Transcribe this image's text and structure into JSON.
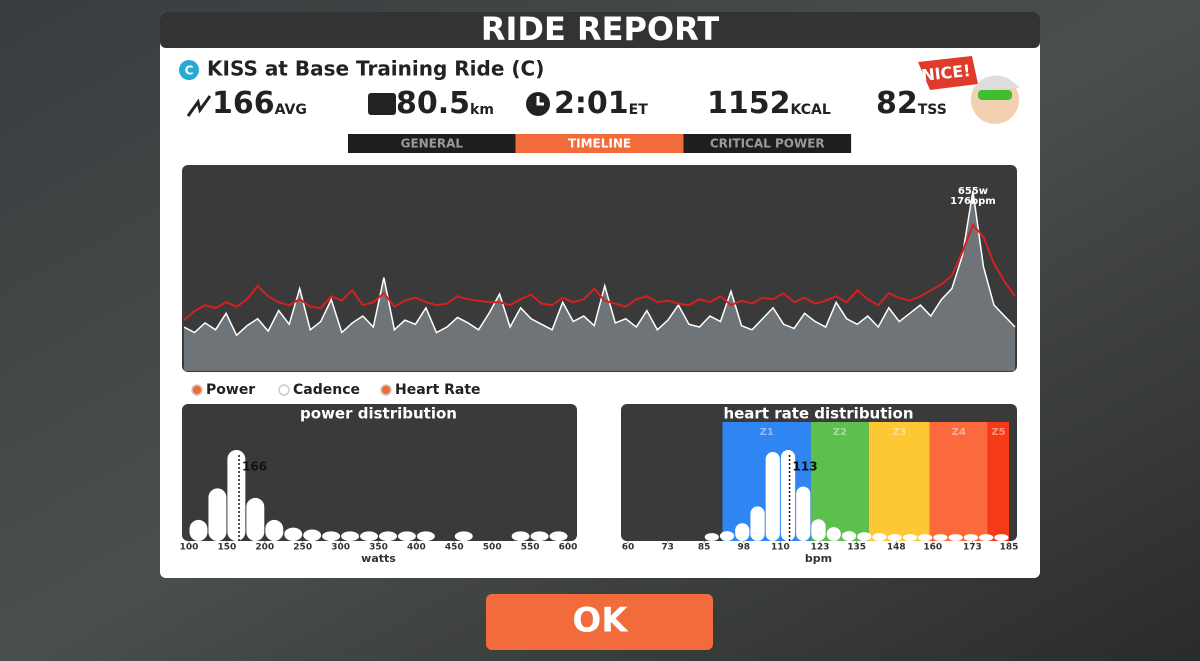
{
  "header": {
    "title": "RIDE REPORT"
  },
  "ride": {
    "badge": "C",
    "name": "KISS at Base Training Ride (C)"
  },
  "stats": [
    {
      "value": 166,
      "unit": "AVG"
    },
    {
      "value": 80.5,
      "unit": "km"
    },
    {
      "value": "2:01",
      "unit": "ET"
    },
    {
      "value": 1152,
      "unit": "KCAL"
    },
    {
      "value": 82,
      "unit": "TSS"
    }
  ],
  "badge": "NICE!",
  "tabs": [
    {
      "label": "GENERAL",
      "active": false
    },
    {
      "label": "TIMELINE",
      "active": true
    },
    {
      "label": "CRITICAL POWER",
      "active": false
    }
  ],
  "timeline": {
    "peak_power_label": "655w",
    "peak_hr_label": "176bpm",
    "legend": [
      {
        "name": "Power",
        "color": "#f26b3a"
      },
      {
        "name": "Cadence",
        "color": "#ffffff"
      },
      {
        "name": "Heart Rate",
        "color": "#f26b3a"
      }
    ],
    "power": [
      160,
      140,
      175,
      150,
      210,
      130,
      165,
      190,
      145,
      220,
      170,
      300,
      150,
      180,
      260,
      140,
      175,
      200,
      160,
      340,
      150,
      185,
      170,
      230,
      140,
      160,
      195,
      175,
      150,
      210,
      280,
      160,
      230,
      190,
      170,
      150,
      250,
      180,
      200,
      165,
      310,
      175,
      190,
      160,
      220,
      150,
      185,
      240,
      170,
      160,
      200,
      180,
      290,
      165,
      150,
      190,
      230,
      170,
      155,
      210,
      180,
      160,
      250,
      190,
      170,
      200,
      160,
      230,
      180,
      210,
      240,
      200,
      260,
      300,
      420,
      655,
      380,
      240,
      200,
      160
    ],
    "heart_rate": [
      112,
      118,
      122,
      120,
      124,
      121,
      126,
      135,
      128,
      124,
      122,
      126,
      121,
      120,
      128,
      125,
      132,
      122,
      124,
      130,
      121,
      125,
      127,
      124,
      122,
      123,
      128,
      126,
      125,
      124,
      124,
      122,
      126,
      129,
      123,
      122,
      127,
      124,
      126,
      133,
      125,
      123,
      121,
      126,
      128,
      124,
      125,
      123,
      122,
      126,
      124,
      128,
      122,
      125,
      123,
      127,
      126,
      130,
      124,
      127,
      123,
      125,
      128,
      124,
      132,
      126,
      122,
      130,
      127,
      125,
      128,
      132,
      136,
      142,
      158,
      176,
      168,
      150,
      138,
      128
    ]
  },
  "power_distribution": {
    "type": "histogram",
    "title": "power distribution",
    "xlabel": "watts",
    "average": 166,
    "bins": [
      100,
      125,
      150,
      175,
      200,
      225,
      250,
      275,
      300,
      325,
      350,
      375,
      400,
      425,
      450,
      475,
      500,
      525,
      550,
      575,
      600
    ],
    "values": [
      22,
      55,
      95,
      45,
      22,
      14,
      12,
      10,
      10,
      10,
      10,
      10,
      10,
      0,
      10,
      0,
      0,
      10,
      10,
      10
    ],
    "xlim": [
      100,
      600
    ],
    "xticks": [
      100,
      150,
      200,
      250,
      300,
      350,
      400,
      450,
      500,
      550,
      600
    ]
  },
  "hr_distribution": {
    "type": "histogram",
    "title": "heart rate distribution",
    "xlabel": "bpm",
    "average": 113,
    "zones": [
      {
        "label": "Z1",
        "from": 91,
        "to": 120,
        "color": "#2f86f2"
      },
      {
        "label": "Z2",
        "from": 120,
        "to": 139,
        "color": "#5cbf4e"
      },
      {
        "label": "Z3",
        "from": 139,
        "to": 159,
        "color": "#fdc833"
      },
      {
        "label": "Z4",
        "from": 159,
        "to": 178,
        "color": "#fb6a3c"
      },
      {
        "label": "Z5",
        "from": 178,
        "to": 185,
        "color": "#f53a18"
      }
    ],
    "bins": [
      85,
      90,
      95,
      100,
      105,
      110,
      115,
      120,
      125,
      130,
      135,
      140,
      145,
      150,
      155,
      160,
      165,
      170,
      175,
      180,
      185
    ],
    "values": [
      8,
      10,
      18,
      35,
      90,
      92,
      55,
      22,
      14,
      10,
      9,
      8,
      7,
      7,
      7,
      7,
      7,
      7,
      7,
      7
    ],
    "xlim": [
      60,
      185
    ],
    "xticks": [
      60,
      73,
      85,
      98,
      110,
      123,
      135,
      148,
      160,
      173,
      185
    ]
  },
  "button": "OK"
}
